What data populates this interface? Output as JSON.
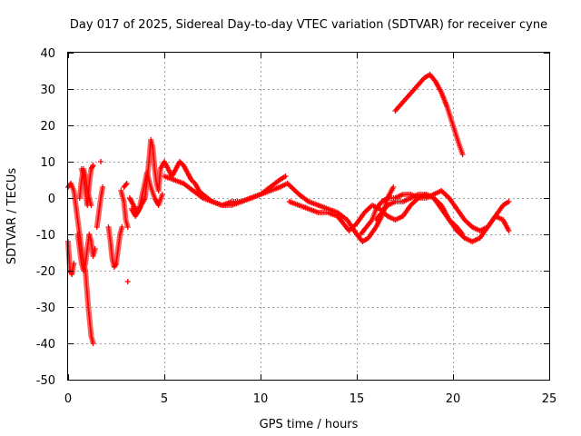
{
  "chart_data": {
    "type": "scatter",
    "title": "Day 017 of 2025, Sidereal Day-to-day VTEC variation (SDTVAR) for receiver cyne",
    "xlabel": "GPS time / hours",
    "ylabel": "SDTVAR / TECUs",
    "xlim": [
      0,
      25
    ],
    "ylim": [
      -50,
      40
    ],
    "xticks": [
      "0",
      "5",
      "10",
      "15",
      "20",
      "25"
    ],
    "yticks": [
      "-50",
      "-40",
      "-30",
      "-20",
      "-10",
      "0",
      "10",
      "20",
      "30",
      "40"
    ],
    "grid": true,
    "marker": "+",
    "series": [
      {
        "name": "SDTVAR",
        "color": "#ff0000",
        "segments": [
          {
            "x": [
              0.0,
              0.15,
              0.3,
              0.45,
              0.6,
              0.75,
              0.9,
              1.05,
              1.2,
              1.3
            ],
            "y": [
              3,
              4,
              2,
              -4,
              -10,
              -16,
              -20,
              -30,
              -38,
              -40
            ]
          },
          {
            "x": [
              0.0,
              0.05,
              0.1,
              0.2,
              0.3
            ],
            "y": [
              -12,
              -16,
              -20,
              -21,
              -18
            ]
          },
          {
            "x": [
              0.5,
              0.6,
              0.7,
              0.8,
              0.9,
              1.0,
              1.1,
              1.2,
              1.3,
              1.4
            ],
            "y": [
              -10,
              -14,
              -18,
              -20,
              -18,
              -14,
              -10,
              -12,
              -16,
              -14
            ]
          },
          {
            "x": [
              0.6,
              0.7,
              0.8,
              0.9,
              1.0,
              1.1,
              1.2
            ],
            "y": [
              0,
              5,
              8,
              6,
              2,
              0,
              -2
            ]
          },
          {
            "x": [
              0.7,
              0.8,
              0.9,
              1.0,
              1.1,
              1.2,
              1.3
            ],
            "y": [
              8,
              6,
              2,
              -2,
              4,
              8,
              9
            ]
          },
          {
            "x": [
              1.5,
              1.6,
              1.7,
              1.8
            ],
            "y": [
              -8,
              -4,
              0,
              3
            ]
          },
          {
            "x": [
              1.7
            ],
            "y": [
              10
            ]
          },
          {
            "x": [
              2.1,
              2.2,
              2.3,
              2.4,
              2.5,
              2.6,
              2.7,
              2.8
            ],
            "y": [
              -8,
              -12,
              -17,
              -19,
              -18,
              -14,
              -10,
              -8
            ]
          },
          {
            "x": [
              2.75,
              2.9,
              3.0,
              3.1
            ],
            "y": [
              2,
              -1,
              -6,
              -8
            ]
          },
          {
            "x": [
              2.9,
              3.05
            ],
            "y": [
              3,
              4
            ]
          },
          {
            "x": [
              3.1
            ],
            "y": [
              -23
            ]
          },
          {
            "x": [
              3.2,
              3.4,
              3.6,
              3.8,
              4.0,
              4.1,
              4.2,
              4.3,
              4.4,
              4.5,
              4.6,
              4.7,
              4.8,
              5.0,
              5.2,
              5.4,
              5.6,
              5.8,
              6.0,
              6.2,
              6.4,
              6.6,
              6.8,
              7.0,
              7.5,
              8.0,
              8.5,
              9.0,
              9.5,
              10.0,
              10.5,
              11.0,
              11.3
            ],
            "y": [
              0,
              -2,
              -4,
              -2,
              0,
              5,
              10,
              16,
              14,
              8,
              4,
              2,
              8,
              10,
              8,
              6,
              8,
              10,
              9,
              7,
              5,
              4,
              2,
              1,
              -1,
              -2,
              -2,
              -1,
              0,
              1,
              3,
              5,
              6
            ]
          },
          {
            "x": [
              3.3,
              3.5,
              3.7,
              3.9,
              4.1,
              4.3,
              4.5,
              4.7,
              4.9
            ],
            "y": [
              -3,
              -5,
              -3,
              2,
              7,
              3,
              0,
              -2,
              1
            ]
          },
          {
            "x": [
              5.0,
              5.5,
              6.0,
              6.5,
              7.0,
              7.5,
              8.0,
              8.5,
              9.0,
              9.5,
              10.0,
              10.5,
              11.0,
              11.4,
              12.0,
              12.5,
              13.0,
              13.5,
              14.0,
              14.5,
              15.0,
              15.3,
              15.6,
              16.0,
              16.3,
              16.6,
              16.9
            ],
            "y": [
              6,
              5,
              4,
              2,
              0,
              -1,
              -2,
              -1,
              -1,
              0,
              1,
              2,
              3,
              4,
              1,
              -1,
              -2,
              -3,
              -4,
              -6,
              -10,
              -12,
              -11,
              -8,
              -5,
              0,
              3
            ]
          },
          {
            "x": [
              11.5,
              12.0,
              12.5,
              13.0,
              13.5,
              14.0,
              14.3,
              14.6,
              15.0,
              15.4,
              15.8,
              16.2,
              16.6,
              17.0,
              17.4,
              17.8,
              18.2,
              18.6,
              19.0,
              19.4,
              19.8,
              20.2,
              20.6,
              21.0,
              21.4,
              21.8,
              22.2,
              22.6,
              22.9
            ],
            "y": [
              -1,
              -2,
              -3,
              -4,
              -4,
              -5,
              -7,
              -9,
              -7,
              -4,
              -2,
              -3,
              -5,
              -6,
              -5,
              -2,
              0,
              1,
              0,
              -2,
              -6,
              -9,
              -11,
              -12,
              -11,
              -8,
              -5,
              -2,
              -1
            ]
          },
          {
            "x": [
              15.2,
              15.5,
              15.8,
              16.0,
              16.3,
              16.6,
              17.0,
              17.4,
              17.8,
              18.2,
              18.6,
              19.0,
              19.4,
              19.8,
              20.2,
              20.6,
              21.0,
              21.4,
              21.8,
              22.2,
              22.6,
              22.9
            ],
            "y": [
              -10,
              -8,
              -6,
              -3,
              -1,
              0,
              0,
              1,
              1,
              0,
              0,
              1,
              2,
              0,
              -3,
              -6,
              -8,
              -9,
              -8,
              -5,
              -6,
              -9
            ]
          },
          {
            "x": [
              16.0,
              16.3,
              16.6,
              17.0,
              17.4,
              17.8,
              18.2,
              18.6,
              19.0,
              19.4,
              19.8,
              20.2,
              20.5
            ],
            "y": [
              -6,
              -4,
              -2,
              -1,
              -1,
              0,
              1,
              1,
              0,
              -3,
              -6,
              -8,
              -10
            ]
          },
          {
            "x": [
              17.0,
              17.5,
              18.0,
              18.5,
              18.8,
              19.1,
              19.4,
              19.7,
              20.0,
              20.3,
              20.5
            ],
            "y": [
              24,
              27,
              30,
              33,
              34,
              32,
              29,
              25,
              20,
              15,
              12
            ]
          }
        ]
      }
    ]
  }
}
